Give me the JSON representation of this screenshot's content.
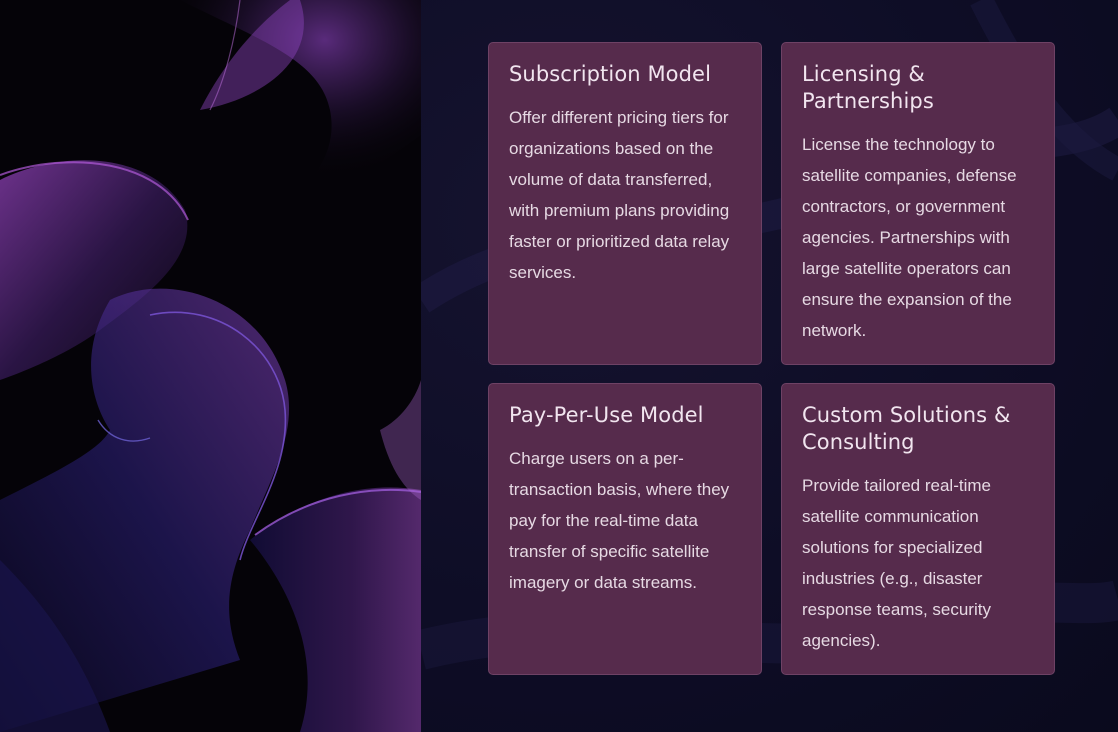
{
  "cards": [
    {
      "title": "Subscription Model",
      "body": "Offer different pricing tiers for organizations based on the volume of data transferred, with premium plans providing faster or prioritized data relay services."
    },
    {
      "title": "Licensing & Partnerships",
      "body": "License the technology to satellite companies, defense contractors, or government agencies. Partnerships with large satellite operators can ensure the expansion of the network."
    },
    {
      "title": "Pay-Per-Use Model",
      "body": "Charge users on a per-transaction basis, where they pay for the real-time data transfer of specific satellite imagery or data streams."
    },
    {
      "title": "Custom Solutions & Consulting",
      "body": "Provide tailored real-time satellite communication solutions for specialized industries (e.g., disaster response teams, security agencies)."
    }
  ],
  "colors": {
    "card_background": "#562b4c",
    "page_background": "#0d0c24",
    "art_purple": "#8a3fb8",
    "art_blue": "#2d2a8c"
  }
}
